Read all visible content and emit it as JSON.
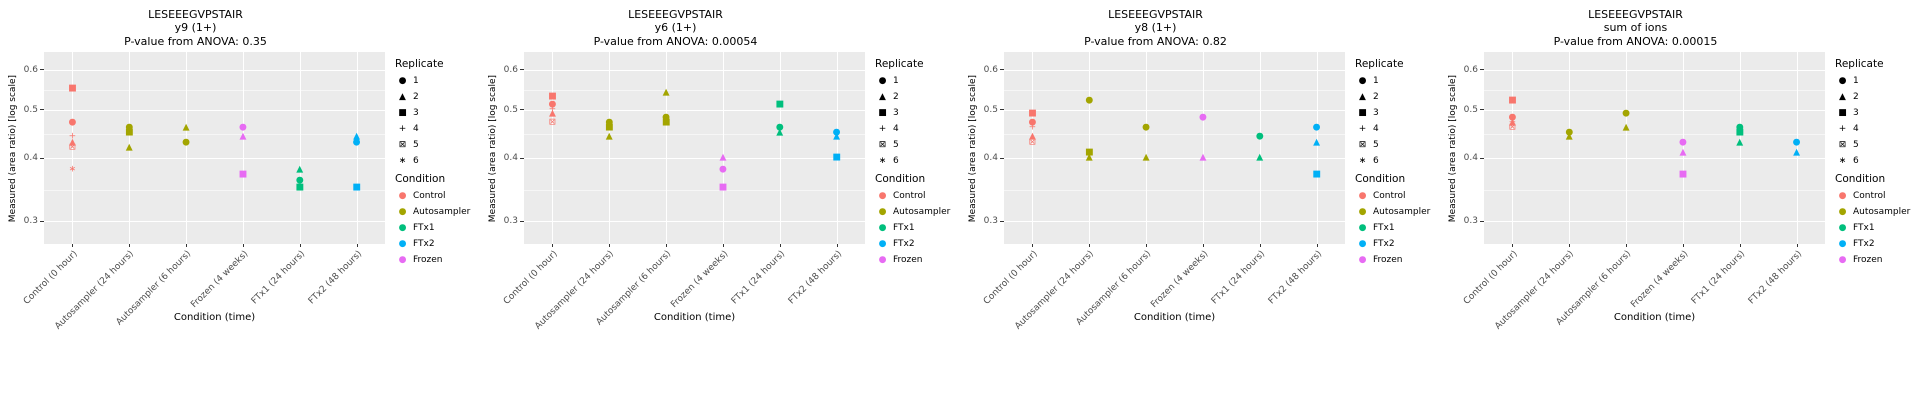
{
  "shared": {
    "title": "LESEEEGVPSTAIR",
    "ylabel": "Measured (area ratio) [log scale]",
    "xlabel": "Condition (time)",
    "yticks": [
      "0.3",
      "0.4",
      "0.5",
      "0.6"
    ],
    "ytick_values": [
      0.3,
      0.4,
      0.5,
      0.6
    ],
    "minor_gridlines": [
      0.346,
      0.447,
      0.548
    ],
    "ylim": [
      0.27,
      0.65
    ],
    "scale": "log10",
    "categories": [
      "Control (0 hour)",
      "Autosampler (24 hours)",
      "Autosampler (6 hours)",
      "Frozen (4 weeks)",
      "FTx1 (24 hours)",
      "FTx2 (48 hours)"
    ],
    "category_conditions": [
      "Control",
      "Autosampler",
      "Autosampler",
      "Frozen",
      "FTx1",
      "FTx2"
    ],
    "shape_glyphs": {
      "circle": "●",
      "triangle": "▲",
      "square": "■",
      "plus": "+",
      "square-cross": "⊠",
      "asterisk": "∗"
    },
    "legend": {
      "replicate_title": "Replicate",
      "replicates": [
        {
          "label": "1",
          "shape": "circle"
        },
        {
          "label": "2",
          "shape": "triangle"
        },
        {
          "label": "3",
          "shape": "square"
        },
        {
          "label": "4",
          "shape": "plus"
        },
        {
          "label": "5",
          "shape": "square-cross"
        },
        {
          "label": "6",
          "shape": "asterisk"
        }
      ],
      "condition_title": "Condition",
      "conditions": [
        {
          "label": "Control",
          "color": "#F8766D"
        },
        {
          "label": "Autosampler",
          "color": "#A3A500"
        },
        {
          "label": "FTx1",
          "color": "#00BF7D"
        },
        {
          "label": "FTx2",
          "color": "#00B0F6"
        },
        {
          "label": "Frozen",
          "color": "#E76BF3"
        }
      ]
    }
  },
  "chart_data": [
    {
      "type": "scatter",
      "title": "LESEEEGVPSTAIR",
      "subtitle": "y9 (1+)",
      "pvalue_text": "P-value from ANOVA: 0.35",
      "points": [
        {
          "c": 0,
          "y": 0.55,
          "r": 3
        },
        {
          "c": 0,
          "y": 0.47,
          "r": 1
        },
        {
          "c": 0,
          "y": 0.44,
          "r": 4
        },
        {
          "c": 0,
          "y": 0.43,
          "r": 2
        },
        {
          "c": 0,
          "y": 0.42,
          "r": 5
        },
        {
          "c": 0,
          "y": 0.38,
          "r": 6
        },
        {
          "c": 1,
          "y": 0.46,
          "r": 1
        },
        {
          "c": 1,
          "y": 0.45,
          "r": 3
        },
        {
          "c": 1,
          "y": 0.42,
          "r": 2
        },
        {
          "c": 2,
          "y": 0.46,
          "r": 2
        },
        {
          "c": 2,
          "y": 0.43,
          "r": 1
        },
        {
          "c": 3,
          "y": 0.46,
          "r": 1
        },
        {
          "c": 3,
          "y": 0.44,
          "r": 2
        },
        {
          "c": 3,
          "y": 0.37,
          "r": 3
        },
        {
          "c": 4,
          "y": 0.38,
          "r": 2
        },
        {
          "c": 4,
          "y": 0.36,
          "r": 1
        },
        {
          "c": 4,
          "y": 0.35,
          "r": 3
        },
        {
          "c": 5,
          "y": 0.44,
          "r": 2
        },
        {
          "c": 5,
          "y": 0.43,
          "r": 1
        },
        {
          "c": 5,
          "y": 0.35,
          "r": 3
        }
      ]
    },
    {
      "type": "scatter",
      "title": "LESEEEGVPSTAIR",
      "subtitle": "y6 (1+)",
      "pvalue_text": "P-value from ANOVA: 0.00054",
      "points": [
        {
          "c": 0,
          "y": 0.53,
          "r": 3
        },
        {
          "c": 0,
          "y": 0.51,
          "r": 1
        },
        {
          "c": 0,
          "y": 0.5,
          "r": 4
        },
        {
          "c": 0,
          "y": 0.49,
          "r": 2
        },
        {
          "c": 0,
          "y": 0.47,
          "r": 5
        },
        {
          "c": 1,
          "y": 0.47,
          "r": 1
        },
        {
          "c": 1,
          "y": 0.46,
          "r": 3
        },
        {
          "c": 1,
          "y": 0.44,
          "r": 2
        },
        {
          "c": 2,
          "y": 0.54,
          "r": 2
        },
        {
          "c": 2,
          "y": 0.48,
          "r": 1
        },
        {
          "c": 2,
          "y": 0.47,
          "r": 3
        },
        {
          "c": 3,
          "y": 0.4,
          "r": 2
        },
        {
          "c": 3,
          "y": 0.38,
          "r": 1
        },
        {
          "c": 3,
          "y": 0.35,
          "r": 3
        },
        {
          "c": 4,
          "y": 0.51,
          "r": 3
        },
        {
          "c": 4,
          "y": 0.46,
          "r": 1
        },
        {
          "c": 4,
          "y": 0.45,
          "r": 2
        },
        {
          "c": 5,
          "y": 0.45,
          "r": 1
        },
        {
          "c": 5,
          "y": 0.44,
          "r": 2
        },
        {
          "c": 5,
          "y": 0.4,
          "r": 3
        }
      ]
    },
    {
      "type": "scatter",
      "title": "LESEEEGVPSTAIR",
      "subtitle": "y8 (1+)",
      "pvalue_text": "P-value from ANOVA: 0.82",
      "points": [
        {
          "c": 0,
          "y": 0.49,
          "r": 3
        },
        {
          "c": 0,
          "y": 0.47,
          "r": 1
        },
        {
          "c": 0,
          "y": 0.46,
          "r": 4
        },
        {
          "c": 0,
          "y": 0.44,
          "r": 2
        },
        {
          "c": 0,
          "y": 0.43,
          "r": 5
        },
        {
          "c": 1,
          "y": 0.52,
          "r": 1
        },
        {
          "c": 1,
          "y": 0.41,
          "r": 3
        },
        {
          "c": 1,
          "y": 0.4,
          "r": 2
        },
        {
          "c": 2,
          "y": 0.46,
          "r": 1
        },
        {
          "c": 2,
          "y": 0.4,
          "r": 2
        },
        {
          "c": 3,
          "y": 0.48,
          "r": 1
        },
        {
          "c": 3,
          "y": 0.4,
          "r": 2
        },
        {
          "c": 4,
          "y": 0.44,
          "r": 1
        },
        {
          "c": 4,
          "y": 0.4,
          "r": 2
        },
        {
          "c": 5,
          "y": 0.46,
          "r": 1
        },
        {
          "c": 5,
          "y": 0.43,
          "r": 2
        },
        {
          "c": 5,
          "y": 0.37,
          "r": 3
        }
      ]
    },
    {
      "type": "scatter",
      "title": "LESEEEGVPSTAIR",
      "subtitle": "sum of ions",
      "pvalue_text": "P-value from ANOVA: 0.00015",
      "points": [
        {
          "c": 0,
          "y": 0.52,
          "r": 3
        },
        {
          "c": 0,
          "y": 0.48,
          "r": 1
        },
        {
          "c": 0,
          "y": 0.47,
          "r": 4
        },
        {
          "c": 0,
          "y": 0.47,
          "r": 2
        },
        {
          "c": 0,
          "y": 0.46,
          "r": 5
        },
        {
          "c": 1,
          "y": 0.45,
          "r": 1
        },
        {
          "c": 1,
          "y": 0.44,
          "r": 2
        },
        {
          "c": 2,
          "y": 0.49,
          "r": 1
        },
        {
          "c": 2,
          "y": 0.46,
          "r": 2
        },
        {
          "c": 3,
          "y": 0.43,
          "r": 1
        },
        {
          "c": 3,
          "y": 0.41,
          "r": 2
        },
        {
          "c": 3,
          "y": 0.37,
          "r": 3
        },
        {
          "c": 4,
          "y": 0.46,
          "r": 1
        },
        {
          "c": 4,
          "y": 0.45,
          "r": 3
        },
        {
          "c": 4,
          "y": 0.43,
          "r": 2
        },
        {
          "c": 5,
          "y": 0.43,
          "r": 1
        },
        {
          "c": 5,
          "y": 0.41,
          "r": 2
        }
      ]
    }
  ]
}
